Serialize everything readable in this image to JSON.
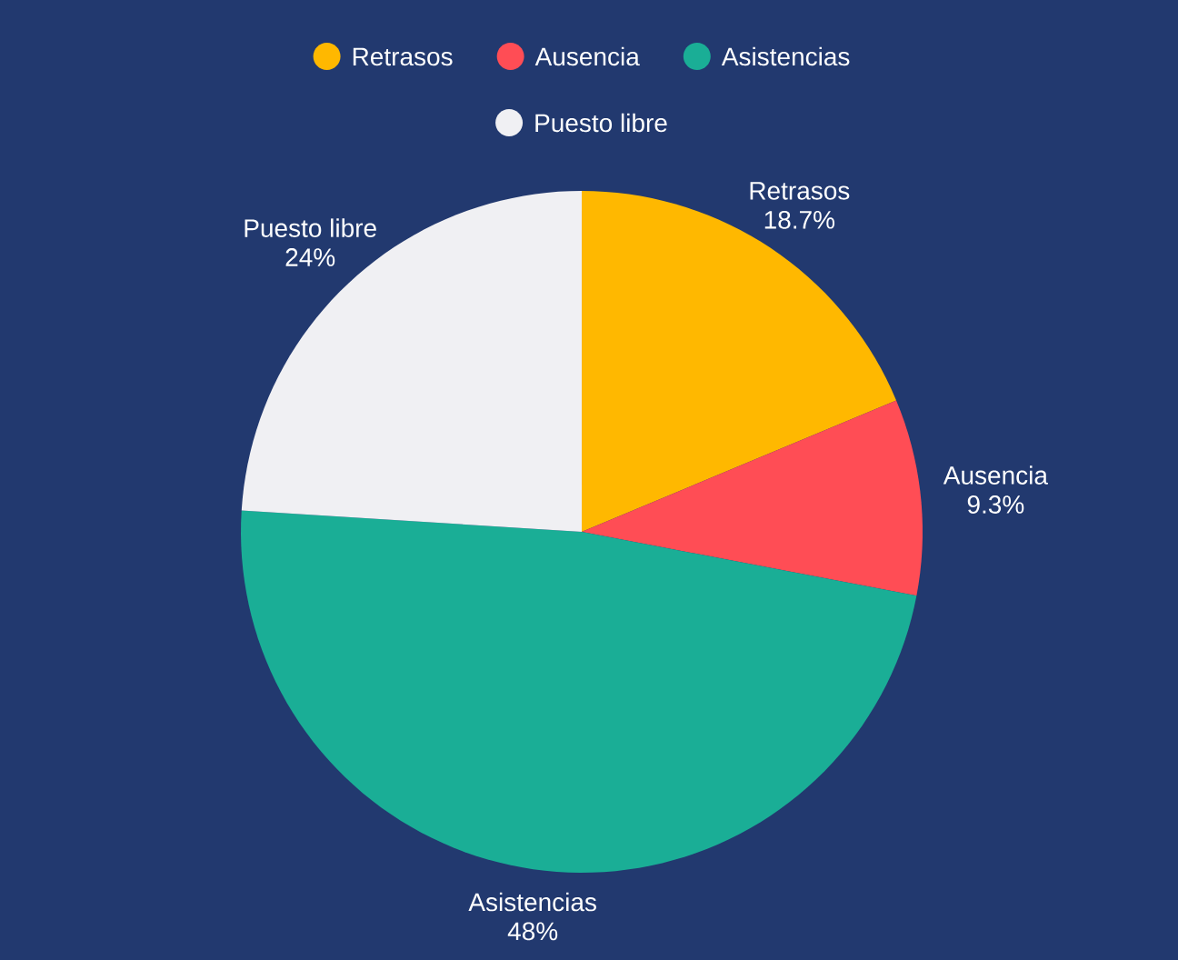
{
  "chart_data": {
    "type": "pie",
    "categories": [
      "Retrasos",
      "Ausencia",
      "Asistencias",
      "Puesto libre"
    ],
    "values": [
      18.7,
      9.3,
      48,
      24
    ],
    "value_labels": [
      "18.7%",
      "9.3%",
      "48%",
      "24%"
    ],
    "colors": [
      "#ffb800",
      "#ff4d55",
      "#1aae96",
      "#f0f0f3"
    ],
    "legend": "top"
  }
}
